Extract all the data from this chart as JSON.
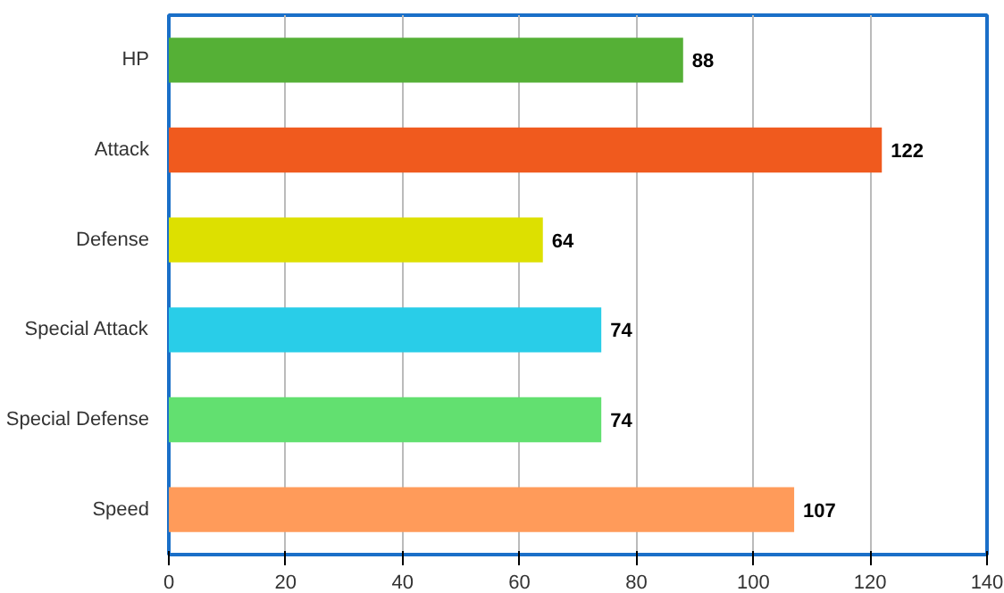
{
  "chart_data": {
    "type": "bar",
    "orientation": "horizontal",
    "categories": [
      "HP",
      "Attack",
      "Defense",
      "Special Attack",
      "Special Defense",
      "Speed"
    ],
    "values": [
      88,
      122,
      64,
      74,
      74,
      107
    ],
    "colors": [
      "#55b036",
      "#f05a1e",
      "#dde000",
      "#29cde8",
      "#62e070",
      "#ff9b5a"
    ],
    "xlim": [
      0,
      140
    ],
    "xticks": [
      0,
      20,
      40,
      60,
      80,
      100,
      120,
      140
    ],
    "grid": "x",
    "data_labels": true
  }
}
